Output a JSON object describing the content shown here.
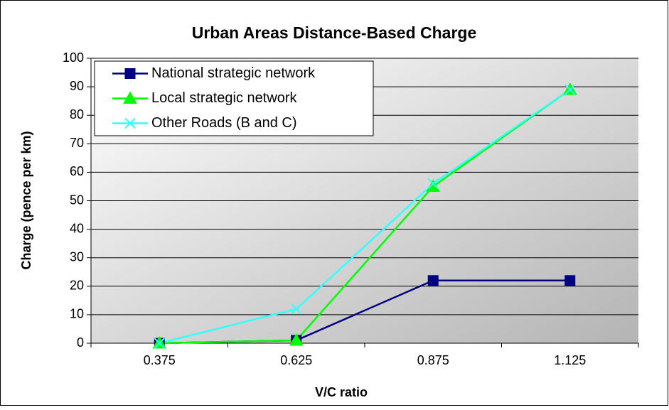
{
  "chart_data": {
    "type": "line",
    "title": "Urban Areas Distance-Based Charge",
    "x_label": "V/C ratio",
    "y_label": "Charge (pence per km)",
    "categories": [
      "0.375",
      "0.625",
      "0.875",
      "1.125"
    ],
    "series": [
      {
        "name": "National strategic network",
        "color": "#000080",
        "marker": "square",
        "values": [
          0,
          1,
          22,
          22
        ]
      },
      {
        "name": "Local strategic network",
        "color": "#00ff00",
        "marker": "triangle",
        "values": [
          0,
          1,
          55,
          89
        ]
      },
      {
        "name": "Other Roads (B and C)",
        "color": "#33ffff",
        "marker": "x",
        "values": [
          0,
          12,
          56,
          89
        ]
      }
    ],
    "ylim": [
      0,
      100
    ],
    "yticks": [
      0,
      10,
      20,
      30,
      40,
      50,
      60,
      70,
      80,
      90,
      100
    ],
    "grid": true,
    "legend": "upper-left"
  }
}
